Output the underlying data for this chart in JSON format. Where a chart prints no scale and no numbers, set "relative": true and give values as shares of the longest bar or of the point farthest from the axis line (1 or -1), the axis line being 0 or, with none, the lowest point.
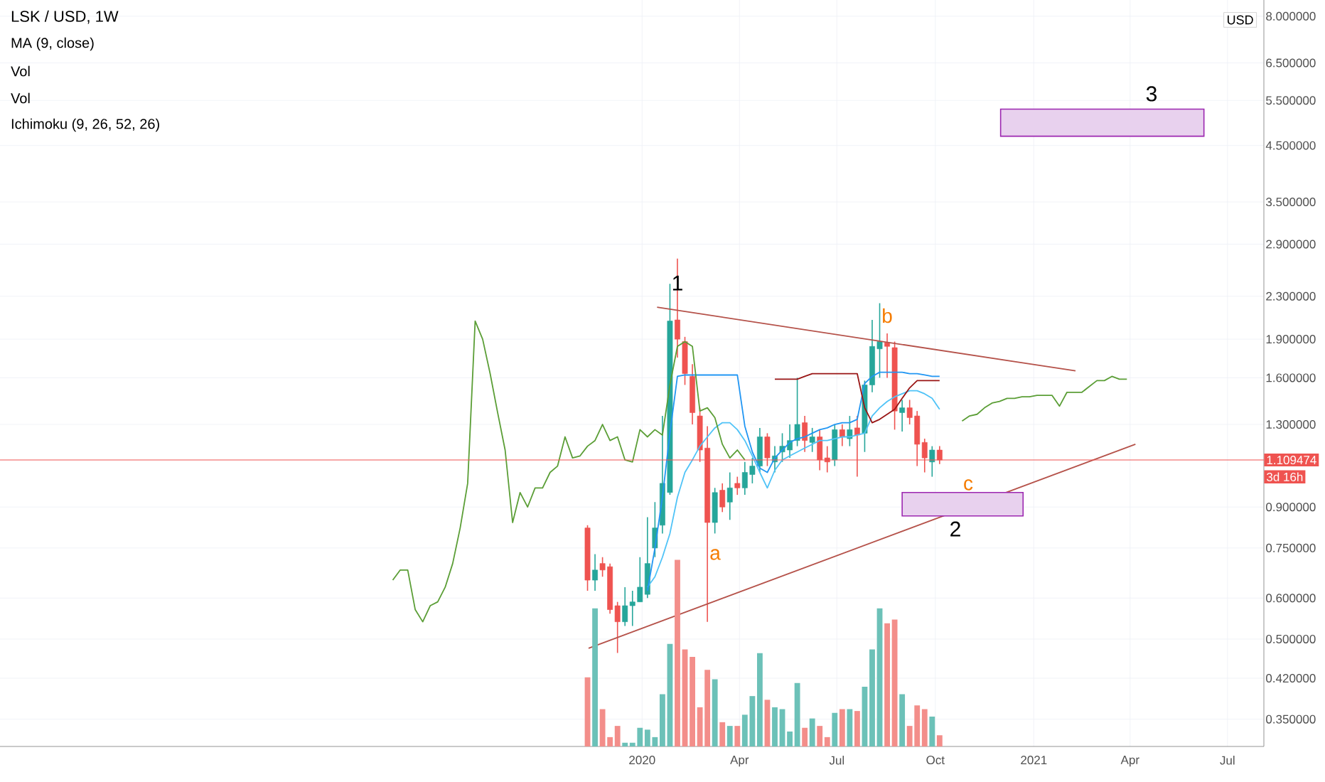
{
  "chart_data": [
    {
      "type": "candlestick",
      "title": "LSK / USD, 1W",
      "x": [
        "2019-11-11",
        "2019-11-18",
        "2019-11-25",
        "2019-12-02",
        "2019-12-09",
        "2019-12-16",
        "2019-12-23",
        "2019-12-30",
        "2020-01-06",
        "2020-01-13",
        "2020-01-20",
        "2020-01-27",
        "2020-02-03",
        "2020-02-10",
        "2020-02-17",
        "2020-02-24",
        "2020-03-02",
        "2020-03-09",
        "2020-03-16",
        "2020-03-23",
        "2020-03-30",
        "2020-04-06",
        "2020-04-13",
        "2020-04-20",
        "2020-04-27",
        "2020-05-04",
        "2020-05-11",
        "2020-05-18",
        "2020-05-25",
        "2020-06-01",
        "2020-06-08",
        "2020-06-15",
        "2020-06-22",
        "2020-06-29",
        "2020-07-06",
        "2020-07-13",
        "2020-07-20",
        "2020-07-27",
        "2020-08-03",
        "2020-08-10",
        "2020-08-17",
        "2020-08-24",
        "2020-08-31",
        "2020-09-07",
        "2020-09-14",
        "2020-09-21",
        "2020-09-28",
        "2020-10-05"
      ],
      "ohlc": [
        [
          0.82,
          0.83,
          0.62,
          0.65
        ],
        [
          0.65,
          0.73,
          0.62,
          0.68
        ],
        [
          0.7,
          0.72,
          0.66,
          0.68
        ],
        [
          0.69,
          0.7,
          0.56,
          0.57
        ],
        [
          0.58,
          0.59,
          0.47,
          0.54
        ],
        [
          0.54,
          0.63,
          0.53,
          0.58
        ],
        [
          0.58,
          0.62,
          0.53,
          0.59
        ],
        [
          0.59,
          0.72,
          0.59,
          0.63
        ],
        [
          0.61,
          0.86,
          0.6,
          0.7
        ],
        [
          0.75,
          0.92,
          0.72,
          0.82
        ],
        [
          0.83,
          1.35,
          0.8,
          1.0
        ],
        [
          0.96,
          2.43,
          0.95,
          2.06
        ],
        [
          2.07,
          2.72,
          1.75,
          1.9
        ],
        [
          1.88,
          1.92,
          1.55,
          1.63
        ],
        [
          1.61,
          1.7,
          1.3,
          1.37
        ],
        [
          1.35,
          1.4,
          1.1,
          1.16
        ],
        [
          1.17,
          1.29,
          0.54,
          0.84
        ],
        [
          0.84,
          0.98,
          0.8,
          0.96
        ],
        [
          0.97,
          1.0,
          0.88,
          0.9
        ],
        [
          0.92,
          1.05,
          0.85,
          0.98
        ],
        [
          1.0,
          1.03,
          0.95,
          0.98
        ],
        [
          0.98,
          1.1,
          0.95,
          1.05
        ],
        [
          1.04,
          1.12,
          1.0,
          1.08
        ],
        [
          1.08,
          1.28,
          1.05,
          1.23
        ],
        [
          1.23,
          1.25,
          1.08,
          1.12
        ],
        [
          1.1,
          1.18,
          1.05,
          1.13
        ],
        [
          1.15,
          1.25,
          1.1,
          1.18
        ],
        [
          1.16,
          1.3,
          1.12,
          1.21
        ],
        [
          1.21,
          1.6,
          1.18,
          1.3
        ],
        [
          1.31,
          1.35,
          1.15,
          1.21
        ],
        [
          1.2,
          1.28,
          1.15,
          1.23
        ],
        [
          1.23,
          1.27,
          1.06,
          1.11
        ],
        [
          1.12,
          1.18,
          1.05,
          1.1
        ],
        [
          1.11,
          1.3,
          1.08,
          1.27
        ],
        [
          1.27,
          1.3,
          1.18,
          1.23
        ],
        [
          1.22,
          1.35,
          1.18,
          1.27
        ],
        [
          1.28,
          1.35,
          1.03,
          1.24
        ],
        [
          1.25,
          1.58,
          1.15,
          1.55
        ],
        [
          1.55,
          2.07,
          1.5,
          1.84
        ],
        [
          1.82,
          2.23,
          1.6,
          1.88
        ],
        [
          1.87,
          1.95,
          1.6,
          1.84
        ],
        [
          1.83,
          1.88,
          1.27,
          1.38
        ],
        [
          1.37,
          1.45,
          1.26,
          1.4
        ],
        [
          1.4,
          1.45,
          1.3,
          1.34
        ],
        [
          1.35,
          1.38,
          1.08,
          1.19
        ],
        [
          1.2,
          1.22,
          1.05,
          1.12
        ],
        [
          1.1,
          1.18,
          1.03,
          1.16
        ],
        [
          1.16,
          1.18,
          1.09,
          1.109474
        ]
      ],
      "colors": [
        "#ef5350",
        "#26a69a",
        "#ef5350",
        "#ef5350",
        "#ef5350",
        "#26a69a",
        "#26a69a",
        "#26a69a",
        "#26a69a",
        "#26a69a",
        "#26a69a",
        "#26a69a",
        "#ef5350",
        "#ef5350",
        "#ef5350",
        "#ef5350",
        "#ef5350",
        "#26a69a",
        "#ef5350",
        "#26a69a",
        "#ef5350",
        "#26a69a",
        "#26a69a",
        "#26a69a",
        "#ef5350",
        "#26a69a",
        "#26a69a",
        "#26a69a",
        "#26a69a",
        "#ef5350",
        "#26a69a",
        "#ef5350",
        "#ef5350",
        "#26a69a",
        "#ef5350",
        "#26a69a",
        "#ef5350",
        "#26a69a",
        "#26a69a",
        "#26a69a",
        "#ef5350",
        "#ef5350",
        "#26a69a",
        "#ef5350",
        "#ef5350",
        "#ef5350",
        "#26a69a",
        "#ef5350"
      ],
      "series": [
        {
          "type": "line",
          "color": "#4fc3f7",
          "x": [
            "2020-01-06",
            "2020-01-13",
            "2020-01-20",
            "2020-01-27",
            "2020-02-03",
            "2020-02-10",
            "2020-02-17",
            "2020-02-24",
            "2020-03-02",
            "2020-03-09",
            "2020-03-16",
            "2020-03-23",
            "2020-03-30",
            "2020-04-06",
            "2020-04-13",
            "2020-04-20",
            "2020-04-27",
            "2020-05-04",
            "2020-05-11",
            "2020-05-18",
            "2020-05-25",
            "2020-06-01",
            "2020-06-08",
            "2020-06-15",
            "2020-06-22",
            "2020-06-29",
            "2020-07-06",
            "2020-07-13",
            "2020-07-20",
            "2020-07-27",
            "2020-08-03",
            "2020-08-10",
            "2020-08-17",
            "2020-08-24",
            "2020-08-31",
            "2020-09-07",
            "2020-09-14",
            "2020-09-21",
            "2020-09-28",
            "2020-10-05"
          ],
          "values": [
            0.63,
            0.66,
            0.72,
            0.8,
            0.94,
            1.05,
            1.11,
            1.18,
            1.23,
            1.28,
            1.31,
            1.31,
            1.27,
            1.21,
            1.13,
            1.05,
            0.98,
            1.06,
            1.11,
            1.13,
            1.15,
            1.17,
            1.19,
            1.21,
            1.21,
            1.22,
            1.23,
            1.23,
            1.24,
            1.25,
            1.35,
            1.4,
            1.44,
            1.47,
            1.49,
            1.51,
            1.51,
            1.49,
            1.46,
            1.39
          ]
        },
        {
          "type": "line",
          "color": "#2196f3",
          "x": [
            "2020-01-06",
            "2020-01-13",
            "2020-01-20",
            "2020-01-27",
            "2020-02-03",
            "2020-02-10",
            "2020-02-17",
            "2020-02-24",
            "2020-03-02",
            "2020-03-09",
            "2020-03-16",
            "2020-03-23",
            "2020-03-30",
            "2020-04-06",
            "2020-04-13",
            "2020-04-20",
            "2020-04-27",
            "2020-05-04",
            "2020-05-11",
            "2020-05-18",
            "2020-05-25",
            "2020-06-01",
            "2020-06-08",
            "2020-06-15",
            "2020-06-22",
            "2020-06-29",
            "2020-07-06",
            "2020-07-13",
            "2020-07-20",
            "2020-07-27",
            "2020-08-03",
            "2020-08-10",
            "2020-08-17",
            "2020-08-24",
            "2020-08-31",
            "2020-09-07",
            "2020-09-14",
            "2020-09-21",
            "2020-09-28",
            "2020-10-05"
          ],
          "values": [
            0.62,
            0.75,
            0.94,
            1.25,
            1.61,
            1.62,
            1.62,
            1.62,
            1.62,
            1.62,
            1.62,
            1.62,
            1.62,
            1.29,
            1.15,
            1.07,
            1.05,
            1.12,
            1.16,
            1.2,
            1.22,
            1.23,
            1.25,
            1.27,
            1.28,
            1.3,
            1.31,
            1.31,
            1.33,
            1.56,
            1.61,
            1.64,
            1.64,
            1.64,
            1.64,
            1.63,
            1.63,
            1.62,
            1.61,
            1.61
          ]
        },
        {
          "type": "line",
          "color": "#991515",
          "x": [
            "2020-05-04",
            "2020-05-11",
            "2020-05-18",
            "2020-05-25",
            "2020-06-01",
            "2020-06-08",
            "2020-06-15",
            "2020-06-22",
            "2020-06-29",
            "2020-07-06",
            "2020-07-13",
            "2020-07-20",
            "2020-07-27",
            "2020-08-03",
            "2020-08-10",
            "2020-08-17",
            "2020-08-24",
            "2020-08-31",
            "2020-09-07",
            "2020-09-14",
            "2020-09-21",
            "2020-09-28",
            "2020-10-05"
          ],
          "values": [
            1.59,
            1.59,
            1.59,
            1.59,
            1.61,
            1.63,
            1.63,
            1.63,
            1.63,
            1.63,
            1.63,
            1.63,
            1.4,
            1.31,
            1.33,
            1.36,
            1.39,
            1.46,
            1.53,
            1.58,
            1.58,
            1.58,
            1.58
          ]
        },
        {
          "type": "line",
          "color": "#5b9e36",
          "x": [
            "2019-05-13",
            "2019-05-20",
            "2019-05-27",
            "2019-06-03",
            "2019-06-10",
            "2019-06-17",
            "2019-06-24",
            "2019-07-01",
            "2019-07-08",
            "2019-07-15",
            "2019-07-22",
            "2019-07-29",
            "2019-08-05",
            "2019-08-12",
            "2019-08-19",
            "2019-08-26",
            "2019-09-02",
            "2019-09-09",
            "2019-09-16",
            "2019-09-23",
            "2019-09-30",
            "2019-10-07",
            "2019-10-14",
            "2019-10-21",
            "2019-10-28",
            "2019-11-04",
            "2019-11-11",
            "2019-11-18",
            "2019-11-25",
            "2019-12-02",
            "2019-12-09",
            "2019-12-16",
            "2019-12-23",
            "2019-12-30",
            "2020-01-06",
            "2020-01-13",
            "2020-01-20",
            "2020-01-27",
            "2020-02-03",
            "2020-02-10",
            "2020-02-17",
            "2020-02-24",
            "2020-03-02",
            "2020-03-09",
            "2020-03-16",
            "2020-03-23",
            "2020-03-30",
            "2020-04-06"
          ],
          "values": [
            0.65,
            0.68,
            0.68,
            0.57,
            0.54,
            0.58,
            0.59,
            0.63,
            0.7,
            0.82,
            1.0,
            2.06,
            1.9,
            1.63,
            1.37,
            1.16,
            0.84,
            0.96,
            0.9,
            0.98,
            0.98,
            1.05,
            1.08,
            1.23,
            1.12,
            1.13,
            1.18,
            1.21,
            1.3,
            1.21,
            1.23,
            1.11,
            1.1,
            1.27,
            1.23,
            1.27,
            1.24,
            1.55,
            1.84,
            1.88,
            1.84,
            1.38,
            1.4,
            1.34,
            1.19,
            1.12,
            1.16,
            1.11
          ]
        },
        {
          "type": "line",
          "color": "#5b9e36",
          "x": [
            "2020-10-26",
            "2020-11-02",
            "2020-11-09",
            "2020-11-16",
            "2020-11-23",
            "2020-11-30",
            "2020-12-07",
            "2020-12-14",
            "2020-12-21",
            "2020-12-28",
            "2021-01-04",
            "2021-01-11",
            "2021-01-18",
            "2021-01-25",
            "2021-02-01",
            "2021-02-08",
            "2021-02-15",
            "2021-02-22",
            "2021-03-01",
            "2021-03-08",
            "2021-03-15",
            "2021-03-22",
            "2021-03-29"
          ],
          "values": [
            1.32,
            1.35,
            1.36,
            1.4,
            1.43,
            1.44,
            1.46,
            1.46,
            1.47,
            1.47,
            1.48,
            1.48,
            1.48,
            1.41,
            1.5,
            1.5,
            1.5,
            1.54,
            1.58,
            1.58,
            1.61,
            1.59,
            1.59
          ]
        },
        {
          "type": "line",
          "color": "#b5524a",
          "x": [
            "2020-01-15",
            "2021-02-09"
          ],
          "values": [
            2.19,
            1.65
          ]
        },
        {
          "type": "line",
          "color": "#b5524a",
          "x": [
            "2019-11-12",
            "2021-04-06"
          ],
          "values": [
            0.48,
            1.19
          ]
        }
      ],
      "xlim": [
        "2018-05-11",
        "2021-08-04"
      ],
      "xticks": [
        {
          "value": "2020-01-01",
          "label": "2020"
        },
        {
          "value": "2020-04-01",
          "label": "Apr"
        },
        {
          "value": "2020-07-01",
          "label": "Jul"
        },
        {
          "value": "2020-10-01",
          "label": "Oct"
        },
        {
          "value": "2021-01-01",
          "label": "2021"
        },
        {
          "value": "2021-04-01",
          "label": "Apr"
        },
        {
          "value": "2021-07-01",
          "label": "Jul"
        }
      ],
      "ylim": [
        0.31,
        8.6
      ],
      "yticks": [
        {
          "value": 0.35,
          "label": "0.350000"
        },
        {
          "value": 0.42,
          "label": "0.420000"
        },
        {
          "value": 0.5,
          "label": "0.500000"
        },
        {
          "value": 0.6,
          "label": "0.600000"
        },
        {
          "value": 0.75,
          "label": "0.750000"
        },
        {
          "value": 0.9,
          "label": "0.900000"
        },
        {
          "value": 1.3,
          "label": "1.300000"
        },
        {
          "value": 1.6,
          "label": "1.600000"
        },
        {
          "value": 1.9,
          "label": "1.900000"
        },
        {
          "value": 2.3,
          "label": "2.300000"
        },
        {
          "value": 2.9,
          "label": "2.900000"
        },
        {
          "value": 3.5,
          "label": "3.500000"
        },
        {
          "value": 4.5,
          "label": "4.500000"
        },
        {
          "value": 5.5,
          "label": "5.500000"
        },
        {
          "value": 6.5,
          "label": "6.500000"
        },
        {
          "value": 8,
          "label": "8.000000"
        }
      ],
      "log": true,
      "grid": true,
      "line_style": "solid",
      "bands": [
        {
          "axis": "y",
          "from": 4.69,
          "to": 5.29,
          "color": "#e8d1ee"
        },
        {
          "axis": "y",
          "from": 0.865,
          "to": 0.96,
          "color": "#e8d1ee"
        }
      ],
      "ref_lines": [
        {
          "axis": "y",
          "value": 1.109474,
          "label": "1.109474",
          "color": "#ef5350"
        }
      ],
      "annotations": [
        {
          "text": "1",
          "x": "2020-02-03",
          "y": 2.27
        },
        "2",
        "3",
        "a",
        "b",
        "c",
        "MA (9, close)",
        "Vol",
        "Vol",
        "Ichimoku (9, 26, 52, 26)",
        "USD",
        "3d 16h"
      ]
    },
    {
      "type": "bar",
      "relative": true,
      "tick_labels": false,
      "xlim": [
        "2018-05-11",
        "2021-08-04"
      ],
      "x": [
        "2019-11-11",
        "2019-11-18",
        "2019-11-25",
        "2019-12-02",
        "2019-12-09",
        "2019-12-16",
        "2019-12-23",
        "2019-12-30",
        "2020-01-06",
        "2020-01-13",
        "2020-01-20",
        "2020-01-27",
        "2020-02-03",
        "2020-02-10",
        "2020-02-17",
        "2020-02-24",
        "2020-03-02",
        "2020-03-09",
        "2020-03-16",
        "2020-03-23",
        "2020-03-30",
        "2020-04-06",
        "2020-04-13",
        "2020-04-20",
        "2020-04-27",
        "2020-05-04",
        "2020-05-11",
        "2020-05-18",
        "2020-05-25",
        "2020-06-01",
        "2020-06-08",
        "2020-06-15",
        "2020-06-22",
        "2020-06-29",
        "2020-07-06",
        "2020-07-13",
        "2020-07-20",
        "2020-07-27",
        "2020-08-03",
        "2020-08-10",
        "2020-08-17",
        "2020-08-24",
        "2020-08-31",
        "2020-09-07",
        "2020-09-14",
        "2020-09-21",
        "2020-09-28",
        "2020-10-05"
      ],
      "values": [
        0.37,
        0.74,
        0.2,
        0.05,
        0.11,
        0.02,
        0.02,
        0.1,
        0.09,
        0.05,
        0.28,
        0.55,
        1,
        0.52,
        0.48,
        0.21,
        0.41,
        0.36,
        0.13,
        0.11,
        0.11,
        0.17,
        0.27,
        0.5,
        0.25,
        0.21,
        0.2,
        0.08,
        0.34,
        0.1,
        0.15,
        0.11,
        0.05,
        0.18,
        0.2,
        0.2,
        0.19,
        0.32,
        0.52,
        0.74,
        0.66,
        0.68,
        0.28,
        0.11,
        0.22,
        0.2,
        0.16,
        0.06
      ],
      "colors": [
        "#f38e8a",
        "#6cc1b8",
        "#f38e8a",
        "#f38e8a",
        "#f38e8a",
        "#6cc1b8",
        "#6cc1b8",
        "#6cc1b8",
        "#6cc1b8",
        "#6cc1b8",
        "#6cc1b8",
        "#6cc1b8",
        "#f38e8a",
        "#f38e8a",
        "#f38e8a",
        "#f38e8a",
        "#f38e8a",
        "#6cc1b8",
        "#f38e8a",
        "#6cc1b8",
        "#f38e8a",
        "#6cc1b8",
        "#6cc1b8",
        "#6cc1b8",
        "#f38e8a",
        "#6cc1b8",
        "#6cc1b8",
        "#6cc1b8",
        "#6cc1b8",
        "#f38e8a",
        "#6cc1b8",
        "#f38e8a",
        "#f38e8a",
        "#6cc1b8",
        "#f38e8a",
        "#6cc1b8",
        "#f38e8a",
        "#6cc1b8",
        "#6cc1b8",
        "#6cc1b8",
        "#f38e8a",
        "#f38e8a",
        "#6cc1b8",
        "#f38e8a",
        "#f38e8a",
        "#f38e8a",
        "#6cc1b8",
        "#f38e8a"
      ]
    }
  ]
}
